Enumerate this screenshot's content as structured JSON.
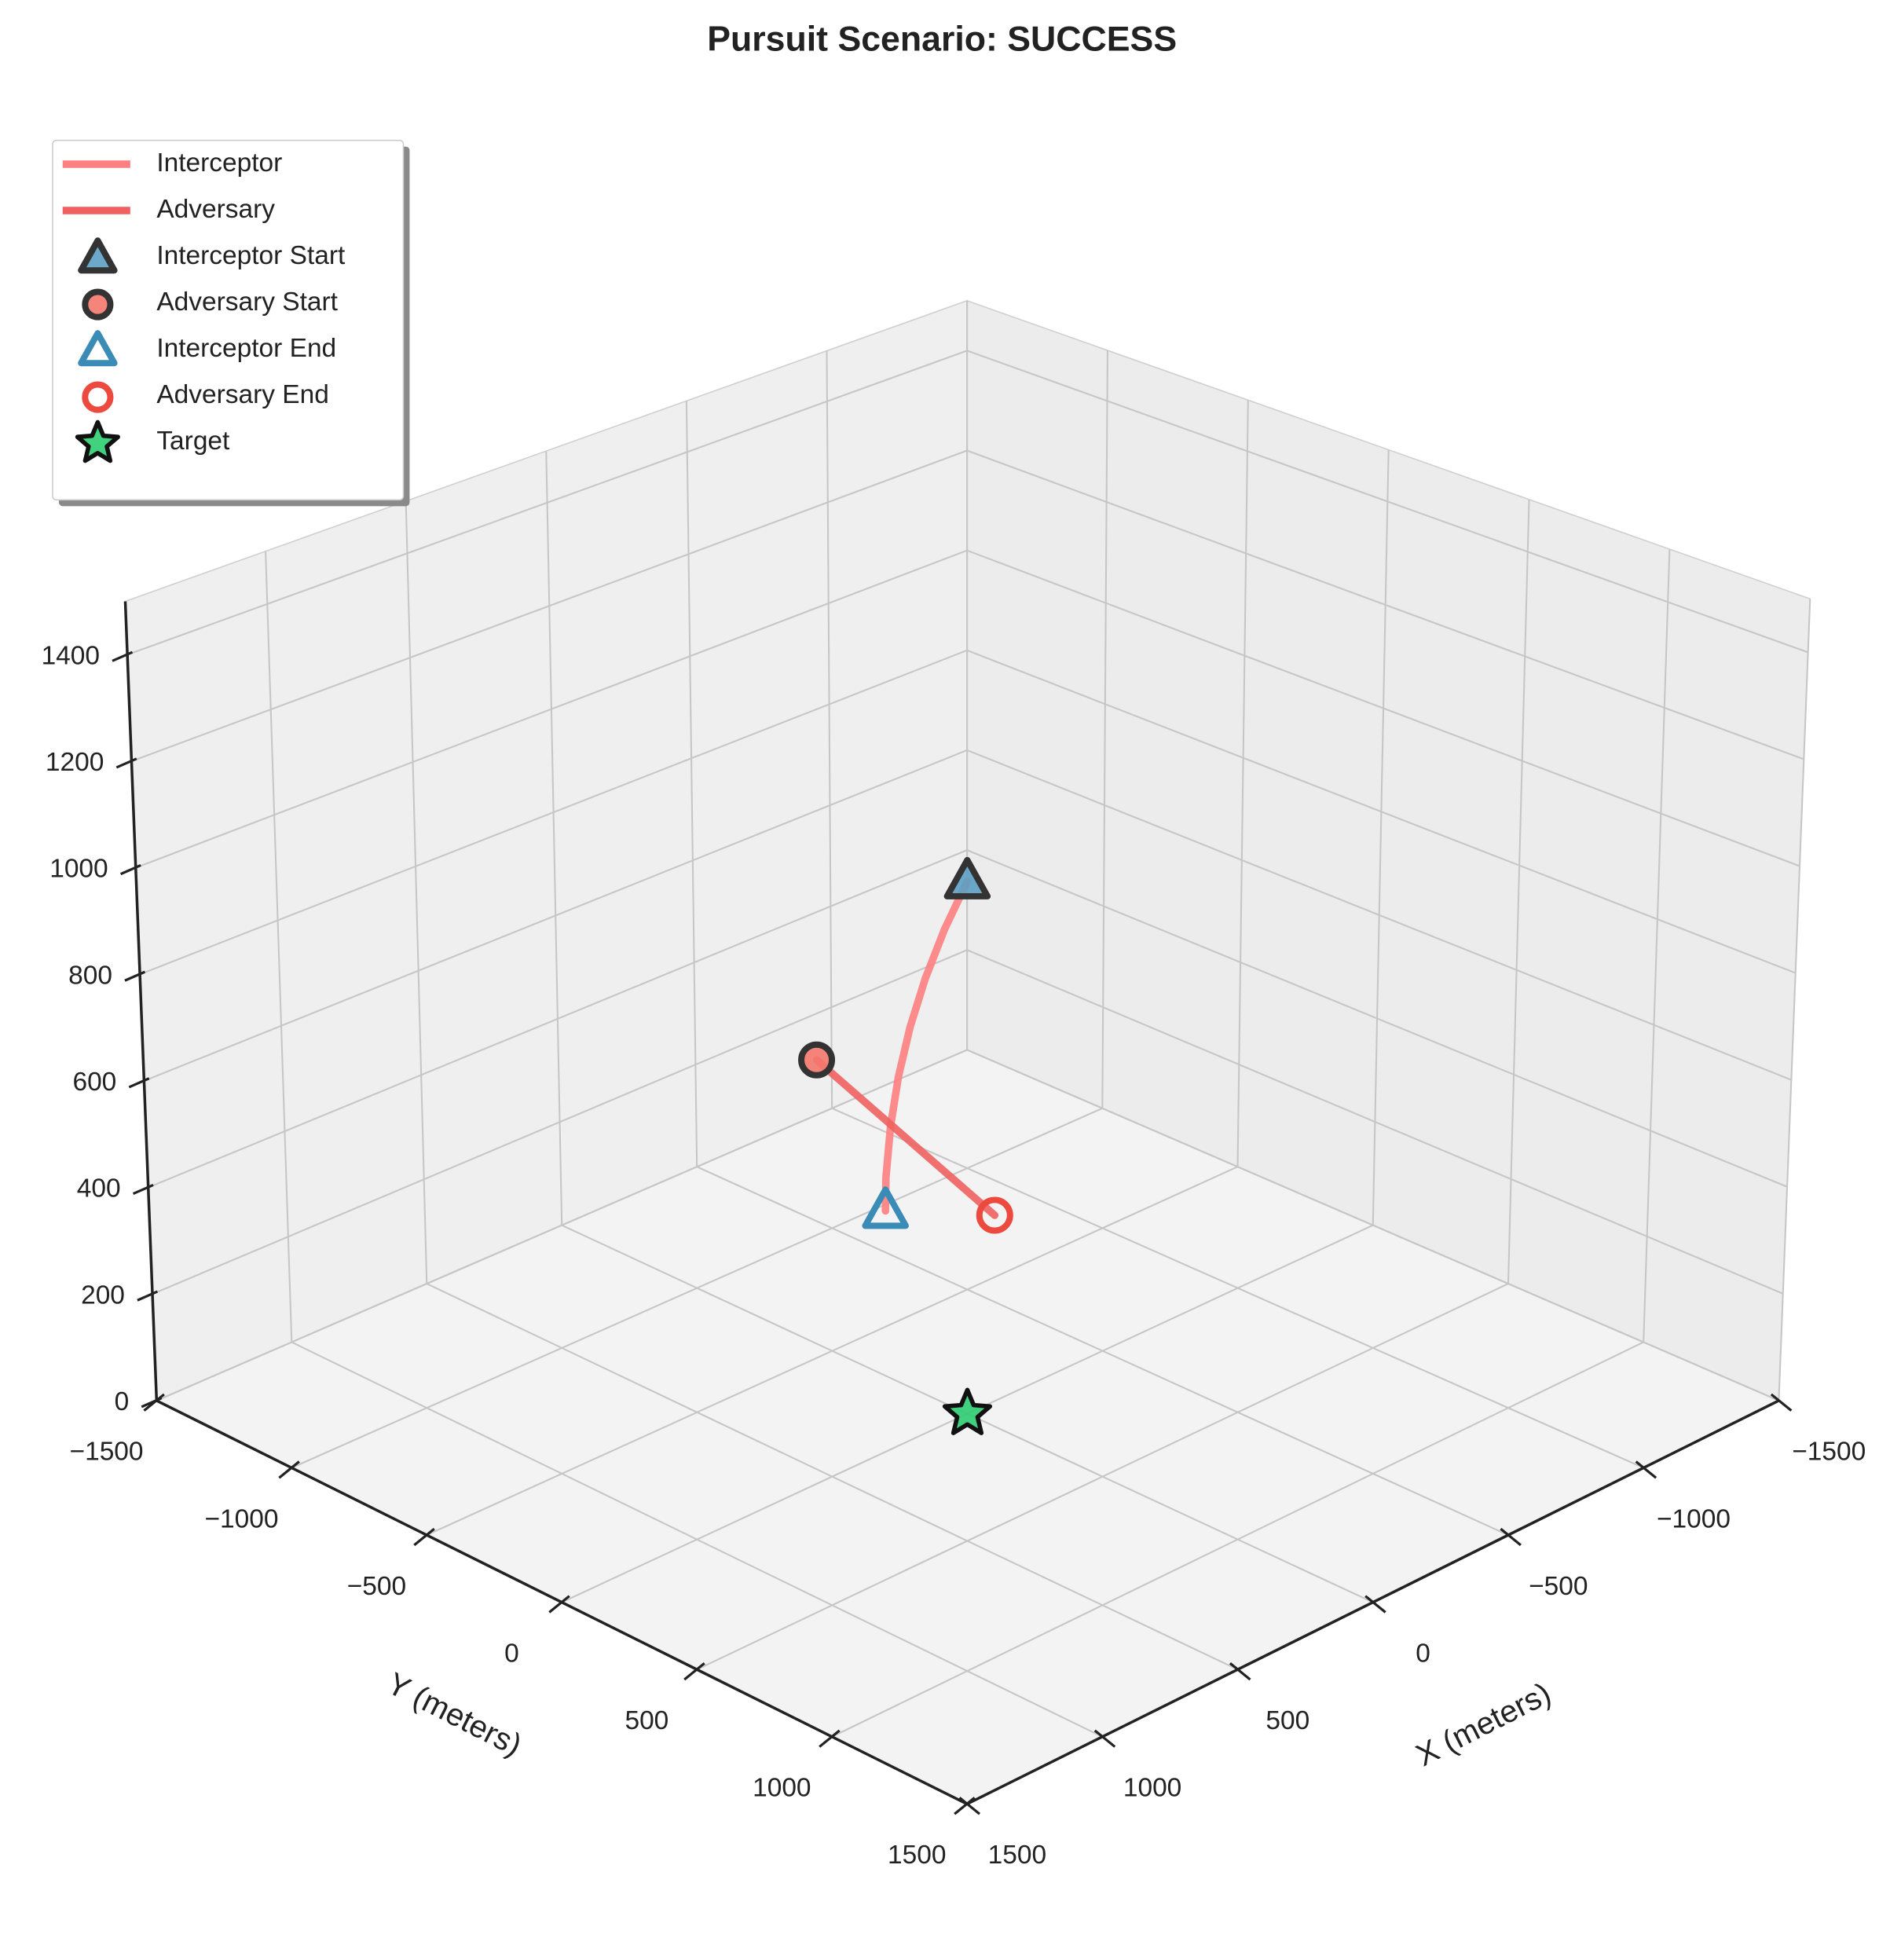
{
  "chart_data": {
    "type": "line3d",
    "title": "Pursuit Scenario: SUCCESS",
    "xlabel": "X (meters)",
    "ylabel": "Y (meters)",
    "xlim": [
      -1500,
      1500
    ],
    "ylim": [
      -1500,
      1500
    ],
    "zlim": [
      0,
      1500
    ],
    "xticks": [
      {
        "value": -1500,
        "label": "−1500"
      },
      {
        "value": -1000,
        "label": "−1000"
      },
      {
        "value": -500,
        "label": "−500"
      },
      0,
      500,
      1000,
      1500
    ],
    "yticks": [
      {
        "value": -1500,
        "label": "−1500"
      },
      {
        "value": -1000,
        "label": "−1000"
      },
      {
        "value": -500,
        "label": "−500"
      },
      0,
      500,
      1000,
      1500
    ],
    "zticks": [
      0,
      200,
      400,
      600,
      800,
      1000,
      1200,
      1400
    ],
    "grid": true,
    "legend_loc": "upper left",
    "series": [
      {
        "name": "Interceptor",
        "color": "#ff8080",
        "x": [
          -800,
          -639,
          -484,
          -336,
          -194,
          -60,
          69,
          150
        ],
        "y": [
          -800,
          -722,
          -637,
          -545,
          -446,
          -341,
          -229,
          -150
        ],
        "z": [
          650,
          610,
          569,
          529,
          488,
          448,
          407,
          380
        ]
      },
      {
        "name": "Adversary",
        "color": "#f06060",
        "x": [
          0,
          100
        ],
        "y": [
          -550,
          200
        ],
        "z": [
          540,
          440
        ]
      }
    ],
    "markers": [
      {
        "name": "Interceptor Start",
        "marker": "triangle",
        "filled": true,
        "color": "#5b9ec4",
        "edgecolor": "#333333",
        "x": -800,
        "y": -800,
        "z": 650
      },
      {
        "name": "Adversary Start",
        "marker": "circle",
        "filled": true,
        "color": "#f4776b",
        "edgecolor": "#333333",
        "x": 0,
        "y": -550,
        "z": 540
      },
      {
        "name": "Interceptor End",
        "marker": "triangle",
        "filled": false,
        "color": "#3a8bb5",
        "edgecolor": "#3a8bb5",
        "x": 150,
        "y": -150,
        "z": 380
      },
      {
        "name": "Adversary End",
        "marker": "circle",
        "filled": false,
        "color": "#ec4a3f",
        "edgecolor": "#ec4a3f",
        "x": 100,
        "y": 200,
        "z": 440
      },
      {
        "name": "Target",
        "marker": "star",
        "filled": true,
        "color": "#2ecc71",
        "edgecolor": "#111111",
        "x": 0,
        "y": 0,
        "z": 0
      }
    ]
  }
}
